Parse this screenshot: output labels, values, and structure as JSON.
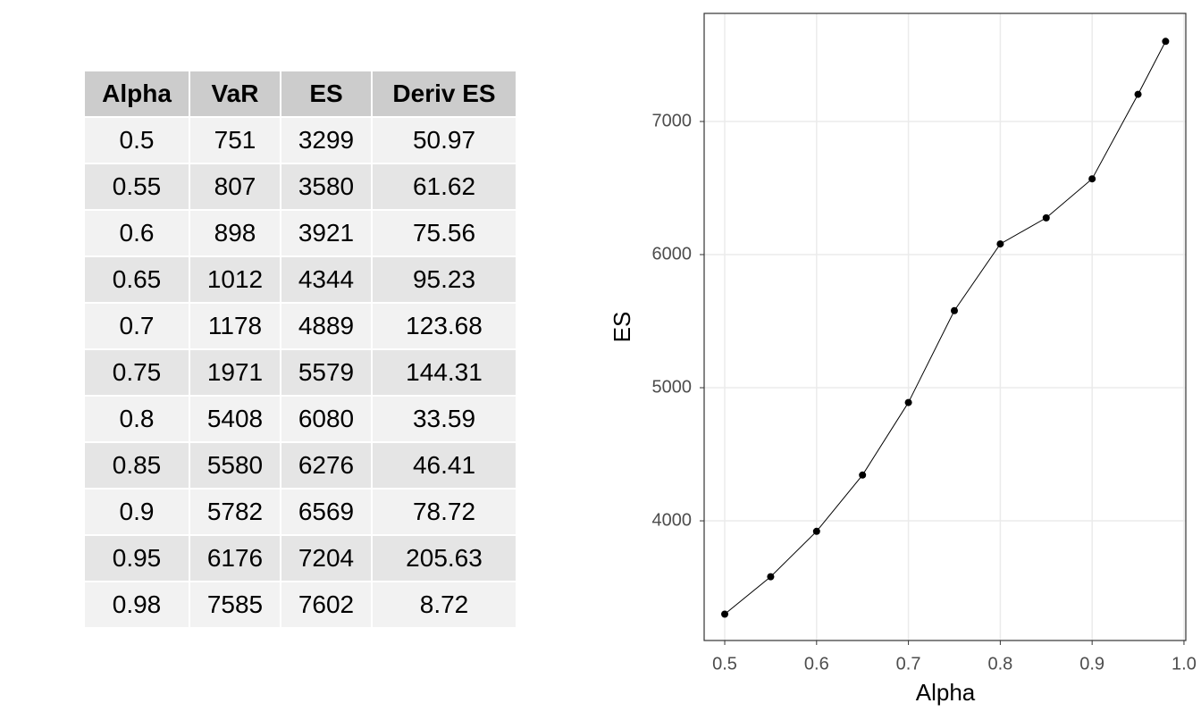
{
  "table": {
    "columns": [
      "Alpha",
      "VaR",
      "ES",
      "Deriv ES"
    ],
    "rows": [
      [
        "0.5",
        "751",
        "3299",
        "50.97"
      ],
      [
        "0.55",
        "807",
        "3580",
        "61.62"
      ],
      [
        "0.6",
        "898",
        "3921",
        "75.56"
      ],
      [
        "0.65",
        "1012",
        "4344",
        "95.23"
      ],
      [
        "0.7",
        "1178",
        "4889",
        "123.68"
      ],
      [
        "0.75",
        "1971",
        "5579",
        "144.31"
      ],
      [
        "0.8",
        "5408",
        "6080",
        "33.59"
      ],
      [
        "0.85",
        "5580",
        "6276",
        "46.41"
      ],
      [
        "0.9",
        "5782",
        "6569",
        "78.72"
      ],
      [
        "0.95",
        "6176",
        "7204",
        "205.63"
      ],
      [
        "0.98",
        "7585",
        "7602",
        "8.72"
      ]
    ]
  },
  "chart_data": {
    "type": "line",
    "x_label": "Alpha",
    "y_label": "ES",
    "x": [
      0.5,
      0.55,
      0.6,
      0.65,
      0.7,
      0.75,
      0.8,
      0.85,
      0.9,
      0.95,
      0.98
    ],
    "values": [
      3299,
      3580,
      3921,
      4344,
      4889,
      5579,
      6080,
      6276,
      6569,
      7204,
      7602
    ],
    "color": "#000000",
    "xlim": [
      0.4776,
      1.002
    ],
    "xticks": [
      0.5,
      0.6,
      0.7,
      0.8,
      0.9,
      {
        "value": 1,
        "label": "1.0"
      }
    ],
    "ylim": [
      3101,
      7812
    ],
    "yticks": [
      4000,
      5000,
      6000,
      7000
    ],
    "grid": true
  }
}
